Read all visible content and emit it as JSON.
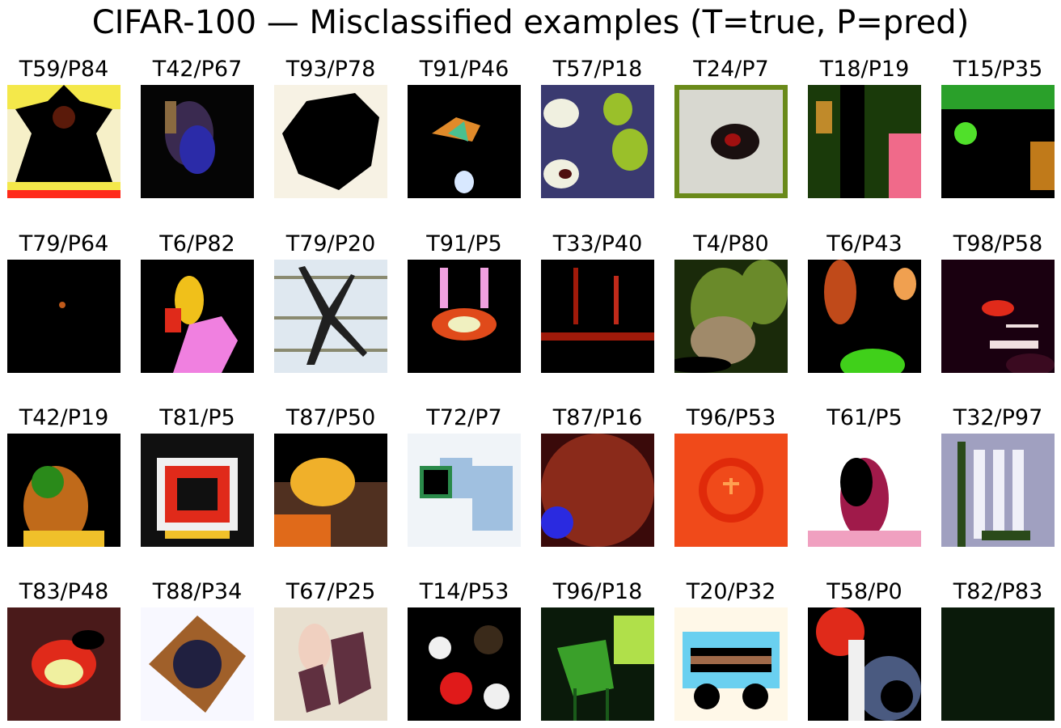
{
  "figure": {
    "title": "CIFAR-100 — Misclassified examples (T=true, P=pred)",
    "rows": [
      [
        {
          "label": "T59/P84",
          "thumb": "figure-cross-icon",
          "bg": "#f4e84a",
          "colors": [
            "#000000",
            "#5a1a0a",
            "#ff2a1a",
            "#f6f0c8"
          ]
        },
        {
          "label": "T42/P67",
          "thumb": "blob-icon",
          "bg": "#050505",
          "colors": [
            "#2b2ba8",
            "#8a6a40",
            "#3a2a50"
          ]
        },
        {
          "label": "T93/P78",
          "thumb": "dark-blob-icon",
          "bg": "#f7f2e4",
          "colors": [
            "#000000",
            "#101010"
          ]
        },
        {
          "label": "T91/P46",
          "thumb": "fish-icon",
          "bg": "#000000",
          "colors": [
            "#e08a2a",
            "#4ac090",
            "#d8e8ff"
          ]
        },
        {
          "label": "T57/P18",
          "thumb": "pears-icon",
          "bg": "#3a3a70",
          "colors": [
            "#f0f0e0",
            "#9ac02a",
            "#501010"
          ]
        },
        {
          "label": "T24/P7",
          "thumb": "beetle-icon",
          "bg": "#d8d8d0",
          "colors": [
            "#1a1010",
            "#6a8a1a",
            "#a01010"
          ]
        },
        {
          "label": "T18/P19",
          "thumb": "forest-icon",
          "bg": "#1a3a0a",
          "colors": [
            "#f06a8a",
            "#c08a2a",
            "#000000"
          ]
        },
        {
          "label": "T15/P35",
          "thumb": "green-dark-icon",
          "bg": "#000000",
          "colors": [
            "#2aa02a",
            "#c07a1a",
            "#50e02a"
          ]
        }
      ],
      [
        {
          "label": "T79/P64",
          "thumb": "dot-icon",
          "bg": "#000000",
          "colors": [
            "#c05a1a"
          ]
        },
        {
          "label": "T6/P82",
          "thumb": "flower-icon",
          "bg": "#000000",
          "colors": [
            "#f080e0",
            "#f0c01a",
            "#e02a1a"
          ]
        },
        {
          "label": "T79/P20",
          "thumb": "spider-icon",
          "bg": "#dfe8f0",
          "colors": [
            "#202020",
            "#8a8a70",
            "#f0f0f0"
          ]
        },
        {
          "label": "T91/P5",
          "thumb": "lamp-icon",
          "bg": "#000000",
          "colors": [
            "#f0a0e0",
            "#e04a1a",
            "#f0f0c0"
          ]
        },
        {
          "label": "T33/P40",
          "thumb": "stakes-icon",
          "bg": "#000000",
          "colors": [
            "#a01a0a",
            "#c02a1a"
          ]
        },
        {
          "label": "T4/P80",
          "thumb": "animal-icon",
          "bg": "#1a2a0a",
          "colors": [
            "#6a8a2a",
            "#a08a6a",
            "#000000"
          ]
        },
        {
          "label": "T6/P43",
          "thumb": "insect-icon",
          "bg": "#000000",
          "colors": [
            "#c04a1a",
            "#40d01a",
            "#f0a050"
          ]
        },
        {
          "label": "T98/P58",
          "thumb": "person-icon",
          "bg": "#1a0010",
          "colors": [
            "#e02a1a",
            "#f0e0e0",
            "#3a0a20"
          ]
        }
      ],
      [
        {
          "label": "T42/P19",
          "thumb": "tiger-icon",
          "bg": "#000000",
          "colors": [
            "#c06a1a",
            "#2a8a1a",
            "#f0c02a"
          ]
        },
        {
          "label": "T81/P5",
          "thumb": "streetcar-icon",
          "bg": "#101010",
          "colors": [
            "#f0f0f0",
            "#e02a1a",
            "#f0c02a"
          ]
        },
        {
          "label": "T87/P50",
          "thumb": "television-icon",
          "bg": "#000000",
          "colors": [
            "#f0b02a",
            "#e06a1a",
            "#503020"
          ]
        },
        {
          "label": "T72/P7",
          "thumb": "seal-icon",
          "bg": "#f0f4f8",
          "colors": [
            "#000000",
            "#2a8a4a",
            "#a0c0e0"
          ]
        },
        {
          "label": "T87/P16",
          "thumb": "screen-icon",
          "bg": "#3a0a0a",
          "colors": [
            "#2a2ae0",
            "#f0f0f0",
            "#8a2a1a"
          ]
        },
        {
          "label": "T96/P53",
          "thumb": "orange-icon",
          "bg": "#f04a1a",
          "colors": [
            "#f0e0c0",
            "#e02a0a",
            "#ffa050"
          ]
        },
        {
          "label": "T61/P5",
          "thumb": "plate-icon",
          "bg": "#ffffff",
          "colors": [
            "#a01a4a",
            "#f0a0c0",
            "#000000"
          ]
        },
        {
          "label": "T32/P97",
          "thumb": "rabbit-icon",
          "bg": "#000000",
          "colors": [
            "#f0f0f8",
            "#2a4a1a",
            "#a0a0c0"
          ]
        }
      ],
      [
        {
          "label": "T83/P48",
          "thumb": "stripes-icon",
          "bg": "#4a1a1a",
          "colors": [
            "#e02a1a",
            "#f0f0a0",
            "#000000"
          ]
        },
        {
          "label": "T88/P34",
          "thumb": "tiger-snow-icon",
          "bg": "#f8f8ff",
          "colors": [
            "#a0602a",
            "#202040",
            "#d0d0e0"
          ]
        },
        {
          "label": "T67/P25",
          "thumb": "ray-icon",
          "bg": "#e8e0d0",
          "colors": [
            "#603040",
            "#a06070",
            "#f0d0c0"
          ]
        },
        {
          "label": "T14/P53",
          "thumb": "butterfly-icon",
          "bg": "#000000",
          "colors": [
            "#e01a1a",
            "#f0f0f0",
            "#3a2a1a"
          ]
        },
        {
          "label": "T96/P18",
          "thumb": "leaves-icon",
          "bg": "#0a1a0a",
          "colors": [
            "#3aa02a",
            "#b0e04a",
            "#1a5a1a"
          ]
        },
        {
          "label": "T20/P32",
          "thumb": "chair-icon",
          "bg": "#fff8e8",
          "colors": [
            "#6ad0f0",
            "#000000",
            "#a06a4a"
          ]
        },
        {
          "label": "T58/P0",
          "thumb": "pickup-icon",
          "bg": "#000000",
          "colors": [
            "#e02a1a",
            "#4a5a80",
            "#f0f0f0"
          ]
        },
        {
          "label": "T82/P83",
          "thumb": "sunflower-icon",
          "bg": "#0a1a0a",
          "colors": [
            "#f0c01a",
            "#e04a0a",
            "#2a8a1a"
          ]
        }
      ]
    ]
  }
}
